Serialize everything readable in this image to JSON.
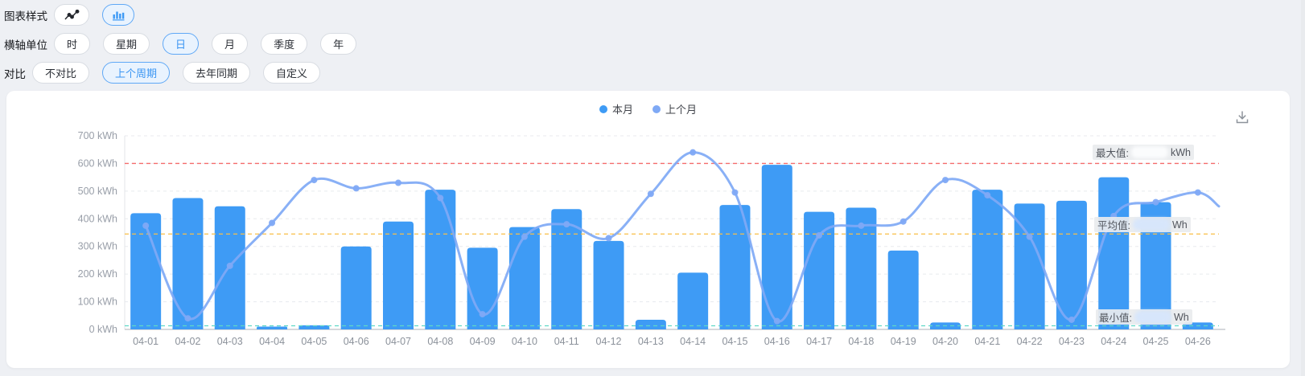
{
  "page": {
    "background": "#eef0f4",
    "accent": "#3b96f3"
  },
  "controls": {
    "style_row": {
      "label": "图表样式",
      "buttons": [
        {
          "name": "line-chart",
          "selected": false
        },
        {
          "name": "bar-chart",
          "selected": true
        }
      ]
    },
    "axis_unit_row": {
      "label": "横轴单位",
      "options": [
        {
          "label": "时",
          "selected": false
        },
        {
          "label": "星期",
          "selected": false
        },
        {
          "label": "日",
          "selected": true
        },
        {
          "label": "月",
          "selected": false
        },
        {
          "label": "季度",
          "selected": false
        },
        {
          "label": "年",
          "selected": false
        }
      ]
    },
    "compare_row": {
      "label": "对比",
      "options": [
        {
          "label": "不对比",
          "selected": false
        },
        {
          "label": "上个周期",
          "selected": true
        },
        {
          "label": "去年同期",
          "selected": false
        },
        {
          "label": "自定义",
          "selected": false
        }
      ]
    }
  },
  "card": {
    "download_icon": "download-icon"
  },
  "chart_data": {
    "type": "bar",
    "title": "",
    "xlabel": "",
    "ylabel": "kWh",
    "ylim": [
      0,
      700
    ],
    "ytick_step": 100,
    "yticks": [
      "0 kWh",
      "100 kWh",
      "200 kWh",
      "300 kWh",
      "400 kWh",
      "500 kWh",
      "600 kWh",
      "700 kWh"
    ],
    "grid": true,
    "legend_position": "top-center",
    "categories": [
      "04-01",
      "04-02",
      "04-03",
      "04-04",
      "04-05",
      "04-06",
      "04-07",
      "04-08",
      "04-09",
      "04-10",
      "04-11",
      "04-12",
      "04-13",
      "04-14",
      "04-15",
      "04-16",
      "04-17",
      "04-18",
      "04-19",
      "04-20",
      "04-21",
      "04-22",
      "04-23",
      "04-24",
      "04-25",
      "04-26"
    ],
    "series": [
      {
        "name": "本月",
        "type": "bar",
        "color": "#3E9BF5",
        "values": [
          420,
          475,
          445,
          10,
          15,
          300,
          390,
          505,
          295,
          370,
          435,
          320,
          35,
          205,
          450,
          595,
          425,
          440,
          285,
          25,
          505,
          455,
          465,
          550,
          460,
          25
        ]
      },
      {
        "name": "上个月",
        "type": "line",
        "color": "#7FA9F5",
        "values": [
          375,
          40,
          230,
          385,
          540,
          510,
          530,
          475,
          55,
          335,
          380,
          330,
          490,
          640,
          495,
          30,
          340,
          375,
          390,
          540,
          485,
          335,
          35,
          410,
          460,
          495
        ],
        "clipped_next_value": 445
      }
    ],
    "reference_lines": [
      {
        "name": "max",
        "label": "最大值:",
        "value": 600,
        "suffix": "kWh",
        "color": "#F56C6C",
        "value_redacted": true
      },
      {
        "name": "avg",
        "label": "平均值:",
        "value": 345,
        "suffix": "Wh",
        "color": "#F9BE45",
        "value_redacted": true
      },
      {
        "name": "min",
        "label": "最小值:",
        "value": 13,
        "suffix": "Wh",
        "color": "#5FD8C7",
        "value_redacted": true
      }
    ]
  }
}
